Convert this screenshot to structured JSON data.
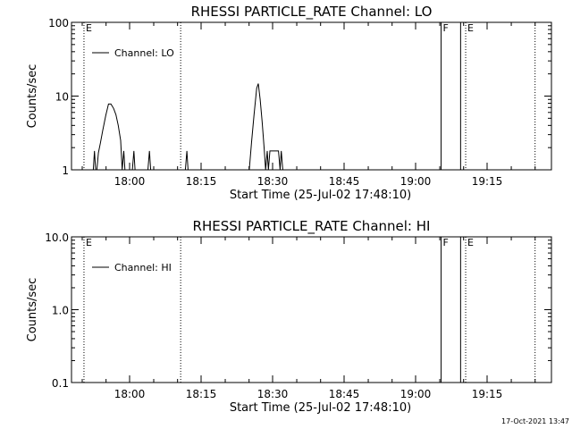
{
  "chart_data": [
    {
      "type": "line",
      "title": "RHESSI PARTICLE_RATE Channel: LO",
      "xlabel": "Start Time (25-Jul-02 17:48:10)",
      "ylabel": "Counts/sec",
      "yscale": "log",
      "ylim": [
        1,
        100
      ],
      "xlim_minutes": [
        17.83,
        108.17
      ],
      "x_ticks": [
        "18:00",
        "18:15",
        "18:30",
        "18:45",
        "19:00",
        "19:15"
      ],
      "y_ticks": [
        "1",
        "10",
        "100"
      ],
      "legend": "Channel: LO",
      "legend_position": "top-left",
      "markers": [
        {
          "x_minute": 1.6,
          "label": "E",
          "style": "dotted"
        },
        {
          "x_minute": 26.4,
          "label": "",
          "style": "dotted"
        },
        {
          "x_minute": 93.2,
          "label": "F",
          "style": "solid"
        },
        {
          "x_minute": 98.2,
          "label": "",
          "style": "solid"
        },
        {
          "x_minute": 99.5,
          "label": "E",
          "style": "dotted"
        },
        {
          "x_minute": 117.3,
          "label": "",
          "style": "dotted"
        }
      ],
      "series": [
        {
          "name": "Channel: LO",
          "points": [
            [
              4.0,
              1
            ],
            [
              4.3,
              1.8
            ],
            [
              4.6,
              1
            ],
            [
              4.9,
              1
            ],
            [
              5.3,
              1.7
            ],
            [
              5.8,
              2.3
            ],
            [
              6.4,
              3.4
            ],
            [
              7.2,
              5.5
            ],
            [
              7.9,
              7.8
            ],
            [
              8.5,
              7.8
            ],
            [
              9.2,
              6.8
            ],
            [
              9.8,
              5.6
            ],
            [
              10.4,
              4.0
            ],
            [
              11.0,
              2.5
            ],
            [
              11.4,
              1
            ],
            [
              11.8,
              1.8
            ],
            [
              12.1,
              1
            ],
            [
              14.0,
              1
            ],
            [
              14.4,
              1.8
            ],
            [
              14.7,
              1
            ],
            [
              18.0,
              1
            ],
            [
              18.4,
              1.8
            ],
            [
              18.7,
              1
            ],
            [
              27.6,
              1
            ],
            [
              28.0,
              1.8
            ],
            [
              28.3,
              1
            ],
            [
              44.0,
              1
            ],
            [
              44.6,
              2.4
            ],
            [
              45.2,
              5.5
            ],
            [
              45.9,
              12.8
            ],
            [
              46.3,
              14.8
            ],
            [
              46.8,
              9.0
            ],
            [
              47.3,
              4.5
            ],
            [
              47.8,
              2.0
            ],
            [
              48.2,
              1
            ],
            [
              48.6,
              1.8
            ],
            [
              48.9,
              1
            ],
            [
              49.3,
              1.8
            ],
            [
              51.5,
              1.8
            ],
            [
              51.9,
              1
            ],
            [
              52.2,
              1.8
            ],
            [
              52.6,
              1
            ]
          ]
        }
      ]
    },
    {
      "type": "line",
      "title": "RHESSI PARTICLE_RATE Channel: HI",
      "xlabel": "Start Time (25-Jul-02 17:48:10)",
      "ylabel": "Counts/sec",
      "yscale": "log",
      "ylim": [
        0.1,
        10
      ],
      "xlim_minutes": [
        17.83,
        108.17
      ],
      "x_ticks": [
        "18:00",
        "18:15",
        "18:30",
        "18:45",
        "19:00",
        "19:15"
      ],
      "y_ticks": [
        "0.1",
        "1.0",
        "10.0"
      ],
      "legend": "Channel: HI",
      "legend_position": "top-left",
      "markers": [
        {
          "x_minute": 1.6,
          "label": "E",
          "style": "dotted"
        },
        {
          "x_minute": 26.4,
          "label": "",
          "style": "dotted"
        },
        {
          "x_minute": 93.2,
          "label": "F",
          "style": "solid"
        },
        {
          "x_minute": 98.2,
          "label": "",
          "style": "solid"
        },
        {
          "x_minute": 99.5,
          "label": "E",
          "style": "dotted"
        },
        {
          "x_minute": 117.3,
          "label": "",
          "style": "dotted"
        }
      ],
      "series": [
        {
          "name": "Channel: HI",
          "points": []
        }
      ]
    }
  ],
  "timestamp": "17-Oct-2021 13:47"
}
